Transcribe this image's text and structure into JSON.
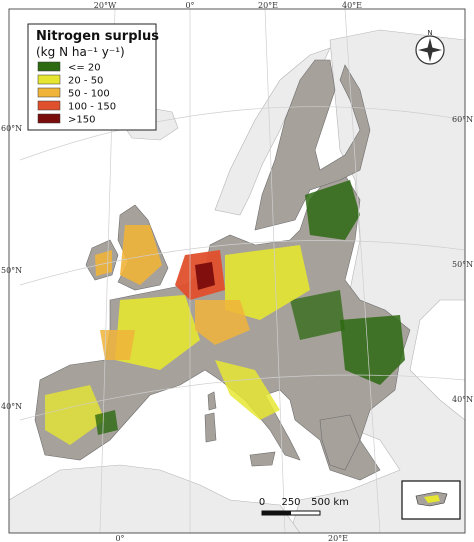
{
  "legend": {
    "title": "Nitrogen surplus",
    "subtitle": "(kg N ha⁻¹ y⁻¹)",
    "classes": [
      {
        "label": "<= 20",
        "color": "#2d6a12"
      },
      {
        "label": "20 - 50",
        "color": "#e6e632"
      },
      {
        "label": "50 - 100",
        "color": "#f0b43a"
      },
      {
        "label": "100 - 150",
        "color": "#e0502c"
      },
      {
        "label": ">150",
        "color": "#7a0c0c"
      }
    ]
  },
  "graticule": {
    "top": [
      "20°W",
      "0°",
      "20°E",
      "40°E"
    ],
    "bottom": [
      "0°",
      "20°E"
    ],
    "left": [
      "60°N",
      "50°N",
      "40°N"
    ],
    "right": [
      "60°N",
      "50°N",
      "40°N"
    ]
  },
  "scalebar": {
    "ticks": [
      "0",
      "250",
      "500 km"
    ]
  },
  "compass": {
    "north_label": "N"
  },
  "colors": {
    "land_nodata": "#a6a19b",
    "outside_land": "#ececec",
    "sea": "#ffffff"
  }
}
